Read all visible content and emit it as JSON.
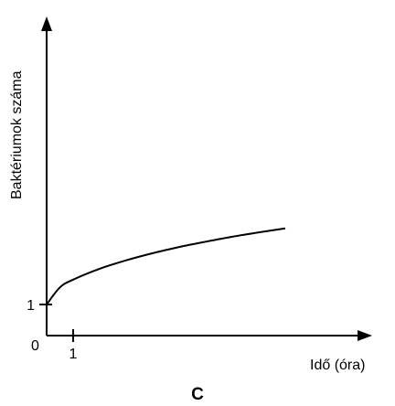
{
  "chart_data": {
    "type": "line",
    "caption": "C",
    "xlabel": "Idő (óra)",
    "ylabel": "Baktériumok száma",
    "origin_label": "0",
    "x_ticks": [
      {
        "value": 1,
        "label": "1"
      }
    ],
    "y_ticks": [
      {
        "value": 1,
        "label": "1"
      }
    ],
    "xlim": [
      0,
      10
    ],
    "ylim": [
      0,
      8
    ],
    "grid": false,
    "series": [
      {
        "x": [
          0,
          0.5,
          1,
          2,
          3,
          4,
          5,
          6,
          7,
          8,
          9
        ],
        "y": [
          1,
          1.55,
          1.8,
          2.15,
          2.42,
          2.65,
          2.85,
          3.02,
          3.18,
          3.32,
          3.45
        ]
      }
    ]
  }
}
